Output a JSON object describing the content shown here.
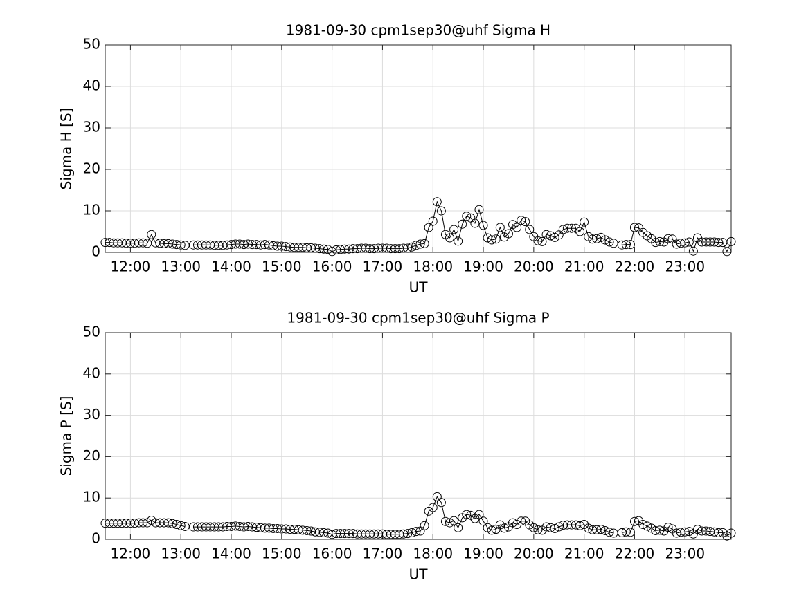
{
  "chart_data": [
    {
      "type": "line",
      "title": "1981-09-30  cpm1sep30@uhf Sigma H",
      "xlabel": "UT",
      "ylabel": "Sigma H [S]",
      "color": "#000000",
      "marker": "o",
      "grid": true,
      "xlim": [
        690,
        1435
      ],
      "ylim": [
        0,
        50
      ],
      "yticks": [
        0,
        10,
        20,
        30,
        40,
        50
      ],
      "xticks": [
        {
          "value": 720,
          "label": "12:00"
        },
        {
          "value": 780,
          "label": "13:00"
        },
        {
          "value": 840,
          "label": "14:00"
        },
        {
          "value": 900,
          "label": "15:00"
        },
        {
          "value": 960,
          "label": "16:00"
        },
        {
          "value": 1020,
          "label": "17:00"
        },
        {
          "value": 1080,
          "label": "18:00"
        },
        {
          "value": 1140,
          "label": "19:00"
        },
        {
          "value": 1200,
          "label": "20:00"
        },
        {
          "value": 1260,
          "label": "21:00"
        },
        {
          "value": 1320,
          "label": "22:00"
        },
        {
          "value": 1380,
          "label": "23:00"
        }
      ],
      "x": [
        690,
        695,
        700,
        705,
        710,
        715,
        720,
        725,
        730,
        735,
        740,
        745,
        750,
        755,
        760,
        765,
        770,
        775,
        780,
        785,
        790,
        795,
        800,
        805,
        810,
        815,
        820,
        825,
        830,
        835,
        840,
        845,
        850,
        855,
        860,
        865,
        870,
        875,
        880,
        885,
        890,
        895,
        900,
        905,
        910,
        915,
        920,
        925,
        930,
        935,
        940,
        945,
        950,
        955,
        960,
        965,
        970,
        975,
        980,
        985,
        990,
        995,
        1000,
        1005,
        1010,
        1015,
        1020,
        1025,
        1030,
        1035,
        1040,
        1045,
        1050,
        1055,
        1060,
        1065,
        1070,
        1075,
        1080,
        1085,
        1090,
        1095,
        1100,
        1105,
        1110,
        1115,
        1120,
        1125,
        1130,
        1135,
        1140,
        1145,
        1150,
        1155,
        1160,
        1165,
        1170,
        1175,
        1180,
        1185,
        1190,
        1195,
        1200,
        1205,
        1210,
        1215,
        1220,
        1225,
        1230,
        1235,
        1240,
        1245,
        1250,
        1255,
        1260,
        1265,
        1270,
        1275,
        1280,
        1285,
        1290,
        1295,
        1300,
        1305,
        1310,
        1315,
        1320,
        1325,
        1330,
        1335,
        1340,
        1345,
        1350,
        1355,
        1360,
        1365,
        1370,
        1375,
        1380,
        1385,
        1390,
        1395,
        1400,
        1405,
        1410,
        1415,
        1420,
        1425,
        1430,
        1435
      ],
      "values": [
        2.4,
        2.4,
        2.3,
        2.3,
        2.3,
        2.2,
        2.2,
        2.2,
        2.3,
        2.3,
        2.2,
        4.3,
        2.3,
        2.2,
        2.1,
        2.1,
        2.0,
        1.9,
        1.8,
        1.7,
        null,
        1.8,
        1.8,
        1.8,
        1.8,
        1.8,
        1.7,
        1.7,
        1.7,
        1.8,
        1.9,
        2.0,
        2.0,
        1.9,
        2.0,
        1.9,
        1.9,
        1.8,
        1.9,
        1.8,
        1.6,
        1.5,
        1.5,
        1.4,
        1.3,
        1.2,
        1.2,
        1.2,
        1.1,
        1.1,
        1.0,
        0.9,
        0.8,
        0.7,
        0.2,
        0.6,
        0.7,
        0.8,
        0.8,
        0.9,
        0.9,
        1.0,
        1.0,
        0.9,
        0.9,
        1.0,
        1.0,
        1.0,
        0.9,
        0.9,
        0.9,
        1.0,
        1.0,
        1.3,
        1.7,
        2.0,
        2.1,
        6.0,
        7.5,
        12.2,
        10.0,
        4.3,
        3.5,
        5.5,
        2.7,
        6.8,
        8.7,
        8.3,
        7.0,
        10.3,
        6.5,
        3.5,
        3.0,
        3.2,
        6.0,
        3.7,
        4.5,
        6.7,
        6.0,
        7.7,
        7.4,
        5.5,
        3.8,
        2.8,
        2.6,
        4.3,
        4.0,
        3.6,
        4.2,
        5.5,
        5.8,
        5.8,
        5.8,
        5.0,
        7.3,
        3.8,
        3.2,
        3.3,
        3.6,
        3.0,
        2.5,
        2.2,
        null,
        1.8,
        1.9,
        1.9,
        6.0,
        5.9,
        4.8,
        4.0,
        3.3,
        2.4,
        2.6,
        2.5,
        3.3,
        3.2,
        2.0,
        2.2,
        2.3,
        2.5,
        0.3,
        3.5,
        2.5,
        2.5,
        2.5,
        2.5,
        2.4,
        2.4,
        0.2,
        2.6
      ]
    },
    {
      "type": "line",
      "title": "1981-09-30  cpm1sep30@uhf Sigma P",
      "xlabel": "UT",
      "ylabel": "Sigma P [S]",
      "color": "#000000",
      "marker": "o",
      "grid": true,
      "xlim": [
        690,
        1435
      ],
      "ylim": [
        0,
        50
      ],
      "yticks": [
        0,
        10,
        20,
        30,
        40,
        50
      ],
      "xticks": [
        {
          "value": 720,
          "label": "12:00"
        },
        {
          "value": 780,
          "label": "13:00"
        },
        {
          "value": 840,
          "label": "14:00"
        },
        {
          "value": 900,
          "label": "15:00"
        },
        {
          "value": 960,
          "label": "16:00"
        },
        {
          "value": 1020,
          "label": "17:00"
        },
        {
          "value": 1080,
          "label": "18:00"
        },
        {
          "value": 1140,
          "label": "19:00"
        },
        {
          "value": 1200,
          "label": "20:00"
        },
        {
          "value": 1260,
          "label": "21:00"
        },
        {
          "value": 1320,
          "label": "22:00"
        },
        {
          "value": 1380,
          "label": "23:00"
        }
      ],
      "x": [
        690,
        695,
        700,
        705,
        710,
        715,
        720,
        725,
        730,
        735,
        740,
        745,
        750,
        755,
        760,
        765,
        770,
        775,
        780,
        785,
        790,
        795,
        800,
        805,
        810,
        815,
        820,
        825,
        830,
        835,
        840,
        845,
        850,
        855,
        860,
        865,
        870,
        875,
        880,
        885,
        890,
        895,
        900,
        905,
        910,
        915,
        920,
        925,
        930,
        935,
        940,
        945,
        950,
        955,
        960,
        965,
        970,
        975,
        980,
        985,
        990,
        995,
        1000,
        1005,
        1010,
        1015,
        1020,
        1025,
        1030,
        1035,
        1040,
        1045,
        1050,
        1055,
        1060,
        1065,
        1070,
        1075,
        1080,
        1085,
        1090,
        1095,
        1100,
        1105,
        1110,
        1115,
        1120,
        1125,
        1130,
        1135,
        1140,
        1145,
        1150,
        1155,
        1160,
        1165,
        1170,
        1175,
        1180,
        1185,
        1190,
        1195,
        1200,
        1205,
        1210,
        1215,
        1220,
        1225,
        1230,
        1235,
        1240,
        1245,
        1250,
        1255,
        1260,
        1265,
        1270,
        1275,
        1280,
        1285,
        1290,
        1295,
        1300,
        1305,
        1310,
        1315,
        1320,
        1325,
        1330,
        1335,
        1340,
        1345,
        1350,
        1355,
        1360,
        1365,
        1370,
        1375,
        1380,
        1385,
        1390,
        1395,
        1400,
        1405,
        1410,
        1415,
        1420,
        1425,
        1430,
        1435
      ],
      "values": [
        3.9,
        3.9,
        3.9,
        3.9,
        3.9,
        3.9,
        3.9,
        3.9,
        4.0,
        4.0,
        4.0,
        4.6,
        4.0,
        4.0,
        4.0,
        4.0,
        3.8,
        3.6,
        3.3,
        3.1,
        null,
        3.0,
        3.0,
        3.0,
        3.0,
        3.0,
        3.0,
        3.0,
        3.0,
        3.1,
        3.1,
        3.2,
        3.1,
        3.0,
        3.1,
        3.0,
        2.9,
        2.8,
        2.7,
        2.7,
        2.6,
        2.6,
        2.5,
        2.5,
        2.4,
        2.4,
        2.3,
        2.2,
        2.1,
        2.0,
        1.8,
        1.7,
        1.6,
        1.5,
        1.2,
        1.4,
        1.4,
        1.4,
        1.4,
        1.4,
        1.3,
        1.3,
        1.3,
        1.3,
        1.3,
        1.3,
        1.3,
        1.2,
        1.2,
        1.2,
        1.2,
        1.3,
        1.4,
        1.6,
        1.9,
        2.0,
        3.3,
        6.8,
        7.7,
        10.3,
        8.9,
        4.3,
        4.0,
        4.5,
        2.8,
        5.2,
        6.0,
        5.8,
        5.0,
        6.0,
        4.4,
        2.8,
        2.2,
        2.4,
        3.5,
        2.7,
        3.0,
        4.0,
        3.6,
        4.4,
        4.4,
        3.5,
        2.8,
        2.3,
        2.2,
        3.0,
        2.8,
        2.6,
        3.0,
        3.4,
        3.5,
        3.5,
        3.5,
        3.3,
        3.6,
        2.7,
        2.3,
        2.3,
        2.4,
        2.1,
        1.7,
        1.5,
        null,
        1.6,
        1.8,
        1.7,
        4.3,
        4.5,
        3.6,
        3.2,
        2.7,
        2.1,
        2.2,
        2.0,
        2.9,
        2.5,
        1.5,
        1.7,
        1.8,
        1.9,
        1.3,
        2.4,
        2.0,
        2.0,
        1.9,
        1.8,
        1.6,
        1.6,
        0.8,
        1.5
      ]
    }
  ]
}
